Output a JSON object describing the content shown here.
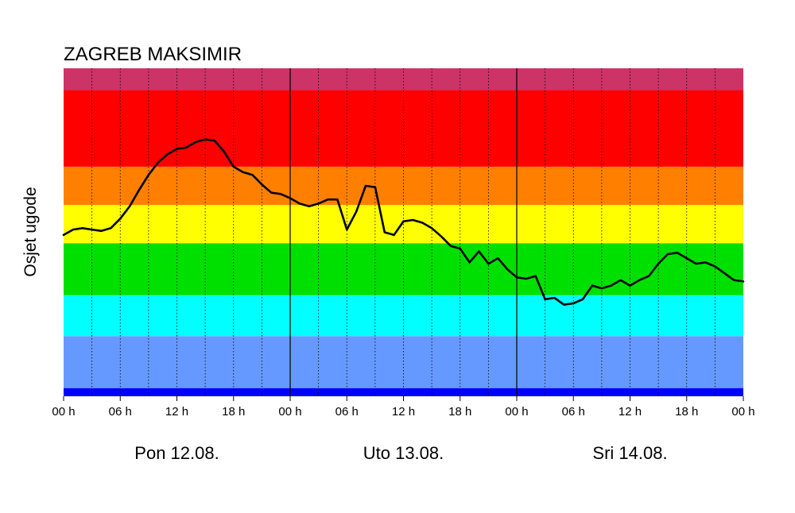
{
  "chart_data": {
    "type": "line",
    "title": "ZAGREB MAKSIMIR",
    "ylabel": "Osjet ugode",
    "xlabel": "",
    "x_tick_labels": [
      "00 h",
      "06 h",
      "12 h",
      "18 h",
      "00 h",
      "06 h",
      "12 h",
      "18 h",
      "00 h",
      "06 h",
      "12 h",
      "18 h",
      "00 h"
    ],
    "x_tick_hours": [
      0,
      6,
      12,
      18,
      24,
      30,
      36,
      42,
      48,
      54,
      60,
      66,
      72
    ],
    "day_labels": [
      {
        "label": "Pon 12.08.",
        "center_hour": 12
      },
      {
        "label": "Uto 13.08.",
        "center_hour": 36
      },
      {
        "label": "Sri 14.08.",
        "center_hour": 60
      }
    ],
    "xlim": [
      0,
      72
    ],
    "ylim": [
      0,
      12
    ],
    "grid": {
      "minor_every_hours": 3,
      "major_every_hours": 24
    },
    "bands": [
      {
        "from": 0.0,
        "to": 0.3,
        "color": "#0000ff"
      },
      {
        "from": 0.3,
        "to": 2.2,
        "color": "#6699ff"
      },
      {
        "from": 2.2,
        "to": 3.7,
        "color": "#00ffff"
      },
      {
        "from": 3.7,
        "to": 5.6,
        "color": "#00e000"
      },
      {
        "from": 5.6,
        "to": 7.0,
        "color": "#ffff00"
      },
      {
        "from": 7.0,
        "to": 8.4,
        "color": "#ff8000"
      },
      {
        "from": 8.4,
        "to": 11.2,
        "color": "#ff0000"
      },
      {
        "from": 11.2,
        "to": 12.0,
        "color": "#cc3366"
      }
    ],
    "series": [
      {
        "color": "#000000",
        "x": [
          0,
          1,
          2,
          3,
          4,
          5,
          6,
          7,
          8,
          9,
          10,
          11,
          12,
          13,
          14,
          15,
          16,
          17,
          18,
          19,
          20,
          21,
          22,
          23,
          24,
          25,
          26,
          27,
          28,
          29,
          30,
          31,
          32,
          33,
          34,
          35,
          36,
          37,
          38,
          39,
          40,
          41,
          42,
          43,
          44,
          45,
          46,
          47,
          48,
          49,
          50,
          51,
          52,
          53,
          54,
          55,
          56,
          57,
          58,
          59,
          60,
          61,
          62,
          63,
          64,
          65,
          66,
          67,
          68,
          69,
          70,
          71,
          72
        ],
        "y": [
          5.9,
          6.1,
          6.15,
          6.1,
          6.05,
          6.15,
          6.5,
          6.95,
          7.55,
          8.1,
          8.55,
          8.85,
          9.05,
          9.1,
          9.3,
          9.4,
          9.35,
          8.95,
          8.4,
          8.2,
          8.1,
          7.75,
          7.45,
          7.4,
          7.25,
          7.05,
          6.95,
          7.05,
          7.2,
          7.2,
          6.1,
          6.75,
          7.7,
          7.65,
          6.0,
          5.9,
          6.4,
          6.45,
          6.35,
          6.15,
          5.85,
          5.5,
          5.4,
          4.9,
          5.3,
          4.85,
          5.05,
          4.65,
          4.35,
          4.3,
          4.4,
          3.55,
          3.6,
          3.35,
          3.4,
          3.55,
          4.05,
          3.95,
          4.05,
          4.25,
          4.05,
          4.25,
          4.4,
          4.85,
          5.2,
          5.25,
          5.05,
          4.85,
          4.9,
          4.75,
          4.5,
          4.25,
          4.2
        ]
      }
    ]
  }
}
